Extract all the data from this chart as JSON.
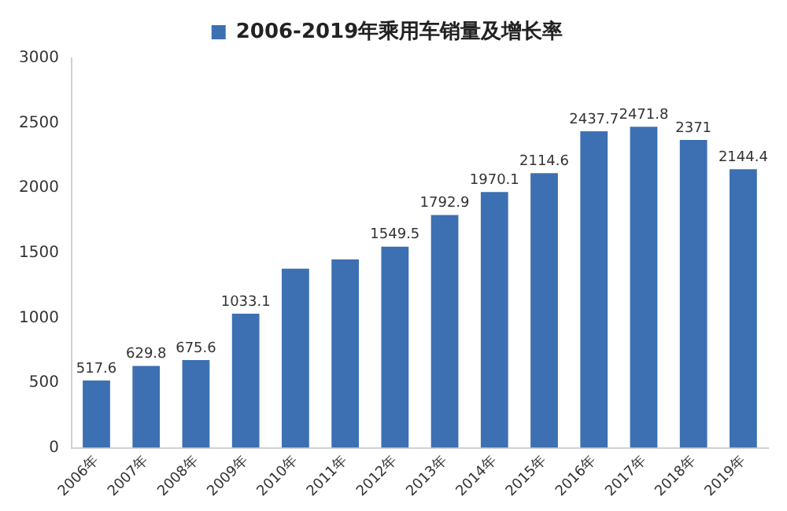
{
  "chart_data": {
    "type": "bar",
    "categories": [
      "2006年",
      "2007年",
      "2008年",
      "2009年",
      "2010年",
      "2011年",
      "2012年",
      "2013年",
      "2014年",
      "2015年",
      "2016年",
      "2017年",
      "2018年",
      "2019年"
    ],
    "series": [
      {
        "name": "2006-2019年乘用车销量及增长率",
        "color": "#3d70b2",
        "values": [
          517.6,
          629.8,
          675.6,
          1033.1,
          1380,
          1450,
          1549.5,
          1792.9,
          1970.1,
          2114.6,
          2437.7,
          2471.8,
          2371,
          2144.4
        ],
        "value_labels": [
          "517.6",
          "629.8",
          "675.6",
          "1033.1",
          null,
          null,
          "1549.5",
          "1792.9",
          "1970.1",
          "2114.6",
          "2437.7",
          "2471.8",
          "2371",
          "2144.4"
        ]
      }
    ],
    "ylim": [
      0,
      3000
    ],
    "yticks": [
      0,
      500,
      1000,
      1500,
      2000,
      2500,
      3000
    ],
    "grid": false,
    "legend": "top"
  }
}
